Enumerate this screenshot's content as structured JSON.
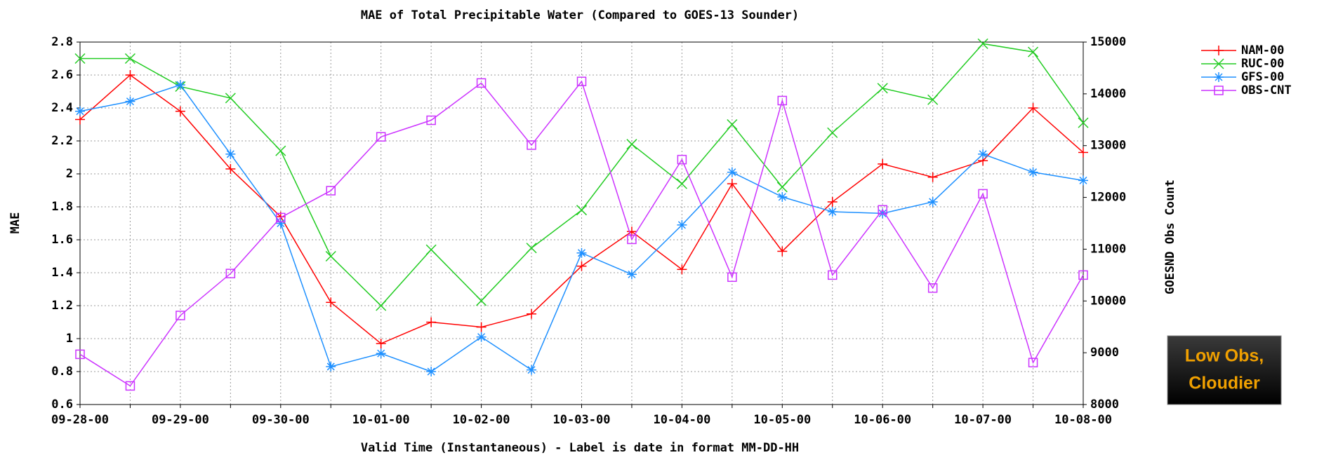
{
  "chart_data": {
    "type": "line",
    "title": "MAE of Total Precipitable Water (Compared to GOES-13 Sounder)",
    "x_label": "Valid Time (Instantaneous) - Label is date in format MM-DD-HH",
    "y_label": "MAE",
    "y2_label": "GOESND Obs Count",
    "categories": [
      "09-28-00",
      null,
      "09-29-00",
      null,
      "09-30-00",
      null,
      "10-01-00",
      null,
      "10-02-00",
      null,
      "10-03-00",
      null,
      "10-04-00",
      null,
      "10-05-00",
      null,
      "10-06-00",
      null,
      "10-07-00",
      null,
      "10-08-00"
    ],
    "ylim": [
      0.6,
      2.8
    ],
    "yticks": [
      0.6,
      0.8,
      1,
      1.2,
      1.4,
      1.6,
      1.8,
      2,
      2.2,
      2.4,
      2.6,
      2.8
    ],
    "y2lim": [
      8000,
      15000
    ],
    "y2ticks": [
      8000,
      9000,
      10000,
      11000,
      12000,
      13000,
      14000,
      15000
    ],
    "grid": true,
    "legend": "outside-right",
    "series": [
      {
        "name": "NAM-00",
        "color": "#ff0000",
        "marker": "plus",
        "values": [
          2.33,
          2.6,
          2.38,
          2.03,
          1.74,
          1.22,
          0.97,
          1.1,
          1.07,
          1.15,
          1.44,
          1.65,
          1.42,
          1.94,
          1.53,
          1.83,
          2.06,
          1.98,
          2.08,
          2.4,
          2.13
        ]
      },
      {
        "name": "RUC-00",
        "color": "#22cc22",
        "marker": "x",
        "values": [
          2.7,
          2.7,
          2.53,
          2.46,
          2.14,
          1.5,
          1.2,
          1.54,
          1.23,
          1.55,
          1.78,
          2.18,
          1.94,
          2.3,
          1.92,
          2.25,
          2.52,
          2.45,
          2.79,
          2.74,
          2.31
        ]
      },
      {
        "name": "GFS-00",
        "color": "#1e90ff",
        "marker": "asterisk",
        "values": [
          2.38,
          2.44,
          2.54,
          2.12,
          1.7,
          0.83,
          0.91,
          0.8,
          1.01,
          0.81,
          1.52,
          1.39,
          1.69,
          2.01,
          1.86,
          1.77,
          1.76,
          1.83,
          2.12,
          2.01,
          1.96
        ]
      },
      {
        "name": "OBS-CNT",
        "color": "#cc33ff",
        "marker": "square",
        "axis": "y2",
        "values": [
          8970,
          8360,
          9720,
          10530,
          11610,
          12130,
          13170,
          13490,
          14210,
          13010,
          14240,
          11190,
          12730,
          10460,
          13870,
          10500,
          11760,
          10250,
          12070,
          8810,
          10500
        ]
      }
    ],
    "annotation": {
      "line1": "Low Obs,",
      "line2": "Cloudier"
    }
  }
}
